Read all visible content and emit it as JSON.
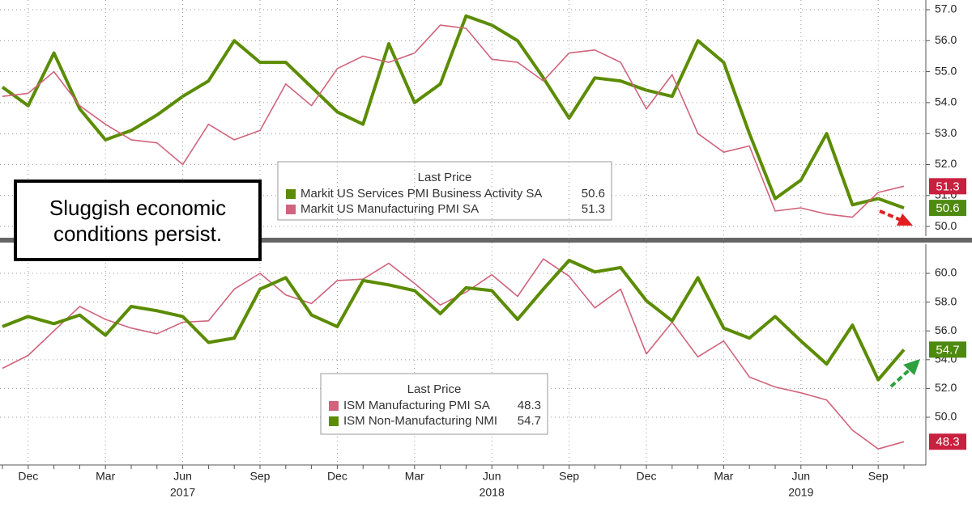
{
  "annotation": "Sluggish economic conditions persist.",
  "chart_data": [
    {
      "type": "line",
      "ylim": [
        49.7,
        57.3
      ],
      "yticks": [
        {
          "value": 50,
          "label": "50.0"
        },
        {
          "value": 51,
          "label": "51.0"
        },
        {
          "value": 52,
          "label": "52.0"
        },
        {
          "value": 53,
          "label": "53.0"
        },
        {
          "value": 54,
          "label": "54.0"
        },
        {
          "value": 55,
          "label": "55.0"
        },
        {
          "value": 56,
          "label": "56.0"
        },
        {
          "value": 57,
          "label": "57.0"
        }
      ],
      "grid": true,
      "legend_title": "Last Price",
      "series": [
        {
          "name": "Markit US Services PMI Business Activity SA",
          "color": "#5b8c00",
          "last_price": "50.6",
          "values": [
            54.5,
            53.9,
            55.6,
            53.8,
            52.8,
            53.1,
            53.6,
            54.2,
            54.7,
            56.0,
            55.3,
            55.3,
            54.5,
            53.7,
            53.3,
            55.9,
            54.0,
            54.6,
            56.8,
            56.5,
            56.0,
            54.8,
            53.5,
            54.8,
            54.7,
            54.4,
            54.2,
            56.0,
            55.3,
            53.0,
            50.9,
            51.5,
            53.0,
            50.7,
            50.9,
            50.6
          ]
        },
        {
          "name": "Markit US Manufacturing PMI SA",
          "color": "#d0647c",
          "last_price": "51.3",
          "values": [
            54.2,
            54.3,
            55.0,
            53.9,
            53.3,
            52.8,
            52.7,
            52.0,
            53.3,
            52.8,
            53.1,
            54.6,
            53.9,
            55.1,
            55.5,
            55.3,
            55.6,
            56.5,
            56.4,
            55.4,
            55.3,
            54.7,
            55.6,
            55.7,
            55.3,
            53.8,
            54.9,
            53.0,
            52.4,
            52.6,
            50.5,
            50.6,
            50.4,
            50.3,
            51.1,
            51.3
          ]
        }
      ]
    },
    {
      "type": "line",
      "ylim": [
        47.0,
        61.3
      ],
      "yticks": [
        {
          "value": 50,
          "label": "50.0"
        },
        {
          "value": 52,
          "label": "52.0"
        },
        {
          "value": 54,
          "label": "54.0"
        },
        {
          "value": 56,
          "label": "56.0"
        },
        {
          "value": 58,
          "label": "58.0"
        },
        {
          "value": 60,
          "label": "60.0"
        }
      ],
      "grid": true,
      "legend_title": "Last Price",
      "categories": [
        null,
        "Dec",
        null,
        null,
        "Mar",
        null,
        null,
        "Jun",
        null,
        null,
        "Sep",
        null,
        null,
        "Dec",
        null,
        null,
        "Mar",
        null,
        null,
        "Jun",
        null,
        null,
        "Sep",
        null,
        null,
        "Dec",
        null,
        null,
        "Mar",
        null,
        null,
        "Jun",
        null,
        null,
        "Sep",
        null
      ],
      "x_group_labels": [
        "2017",
        "2018",
        "2019"
      ],
      "series": [
        {
          "name": "ISM Manufacturing PMI SA",
          "color": "#d0647c",
          "last_price": "48.3",
          "values": [
            53.4,
            54.3,
            56.0,
            57.7,
            56.8,
            56.2,
            55.8,
            56.6,
            56.7,
            58.9,
            60.0,
            58.5,
            57.9,
            59.5,
            59.6,
            60.7,
            59.3,
            57.8,
            58.7,
            59.9,
            58.4,
            61.0,
            59.8,
            57.6,
            58.9,
            54.4,
            56.6,
            54.2,
            55.3,
            52.8,
            52.1,
            51.7,
            51.2,
            49.1,
            47.8,
            48.3
          ]
        },
        {
          "name": "ISM Non-Manufacturing NMI",
          "color": "#5b8c00",
          "last_price": "54.7",
          "values": [
            56.3,
            57.0,
            56.5,
            57.1,
            55.7,
            57.7,
            57.4,
            57.0,
            55.2,
            55.5,
            58.9,
            59.7,
            57.1,
            56.3,
            59.5,
            59.2,
            58.8,
            57.2,
            59.0,
            58.8,
            56.8,
            58.9,
            60.9,
            60.1,
            60.4,
            58.1,
            56.7,
            59.7,
            56.2,
            55.5,
            57.0,
            55.3,
            53.7,
            56.4,
            52.6,
            54.7
          ]
        }
      ]
    }
  ]
}
